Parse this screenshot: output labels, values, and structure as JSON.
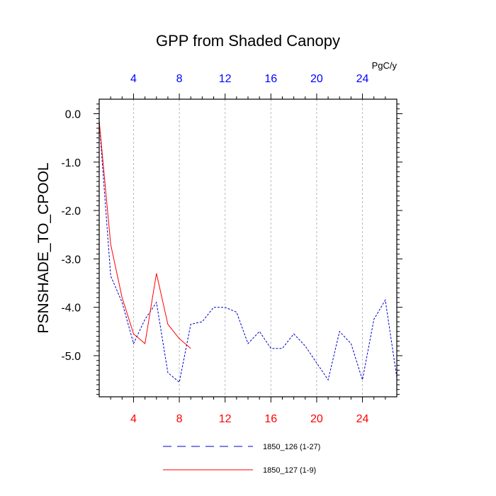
{
  "chart_data": {
    "type": "line",
    "title": "GPP from Shaded Canopy",
    "ylabel": "PSNSHADE_TO_CPOOL",
    "xlabel": "",
    "top_axis_unit": "PgC/y",
    "xlim": [
      1,
      27
    ],
    "ylim": [
      -5.85,
      0.3
    ],
    "y_ticks": [
      0.0,
      -1.0,
      -2.0,
      -3.0,
      -4.0,
      -5.0
    ],
    "y_tick_labels": [
      "0.0",
      "-1.0",
      "-2.0",
      "-3.0",
      "-4.0",
      "-5.0"
    ],
    "x_ticks": [
      4,
      8,
      12,
      16,
      20,
      24
    ],
    "x_tick_labels": [
      "4",
      "8",
      "12",
      "16",
      "20",
      "24"
    ],
    "grid": "vertical dashed at x ticks",
    "legend_position": "bottom",
    "colors": {
      "bottom_ticks": "#ff0000",
      "top_ticks": "#0000ff",
      "axis": "#000000"
    },
    "series": [
      {
        "name": "1850_126 (1-27)",
        "color": "#0000cc",
        "dash": "dashed",
        "x": [
          1,
          2,
          3,
          4,
          5,
          6,
          7,
          8,
          9,
          10,
          11,
          12,
          13,
          14,
          15,
          16,
          17,
          18,
          19,
          20,
          21,
          22,
          23,
          24,
          25,
          26,
          27
        ],
        "y": [
          -0.15,
          -3.35,
          -3.9,
          -4.75,
          -4.25,
          -3.9,
          -5.35,
          -5.55,
          -4.35,
          -4.3,
          -4.0,
          -4.0,
          -4.1,
          -4.75,
          -4.5,
          -4.85,
          -4.85,
          -4.55,
          -4.8,
          -5.15,
          -5.5,
          -4.5,
          -4.75,
          -5.5,
          -4.25,
          -3.85,
          -5.45
        ]
      },
      {
        "name": "1850_127 (1-9)",
        "color": "#ff0000",
        "dash": "solid",
        "x": [
          1,
          2,
          3,
          4,
          5,
          6,
          7,
          8,
          9
        ],
        "y": [
          -0.15,
          -2.7,
          -3.8,
          -4.55,
          -4.75,
          -3.3,
          -4.35,
          -4.65,
          -4.85
        ]
      }
    ]
  }
}
